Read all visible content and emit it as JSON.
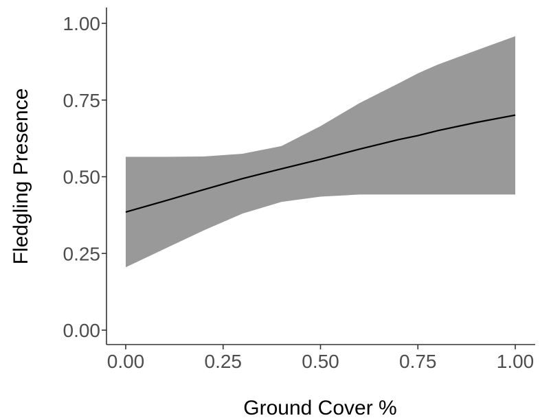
{
  "chart_data": {
    "type": "line",
    "title": "",
    "xlabel": "Ground Cover %",
    "ylabel": "Fledgling Presence",
    "xlim": [
      0,
      1
    ],
    "ylim": [
      0,
      1
    ],
    "x_ticks": [
      0,
      0.25,
      0.5,
      0.75,
      1
    ],
    "y_ticks": [
      0,
      0.25,
      0.5,
      0.75,
      1
    ],
    "x_tick_labels": [
      "0.00",
      "0.25",
      "0.50",
      "0.75",
      "1.00"
    ],
    "y_tick_labels": [
      "0.00",
      "0.25",
      "0.50",
      "0.75",
      "1.00"
    ],
    "grid": false,
    "legend": "none",
    "colors": {
      "line": "#000000",
      "ribbon": "#999999",
      "axis": "#333333",
      "tick_label": "#4d4d4d"
    },
    "x": [
      0,
      0.1,
      0.2,
      0.3,
      0.4,
      0.5,
      0.6,
      0.7,
      0.75,
      0.8,
      0.9,
      1.0
    ],
    "series": [
      {
        "values": [
          0.385,
          0.421,
          0.458,
          0.494,
          0.526,
          0.557,
          0.59,
          0.621,
          0.634,
          0.65,
          0.677,
          0.701
        ],
        "lower": [
          0.205,
          0.265,
          0.325,
          0.38,
          0.418,
          0.435,
          0.442,
          0.442,
          0.442,
          0.442,
          0.442,
          0.442
        ],
        "upper": [
          0.565,
          0.565,
          0.566,
          0.575,
          0.6,
          0.665,
          0.74,
          0.804,
          0.837,
          0.865,
          0.912,
          0.958
        ]
      }
    ]
  }
}
